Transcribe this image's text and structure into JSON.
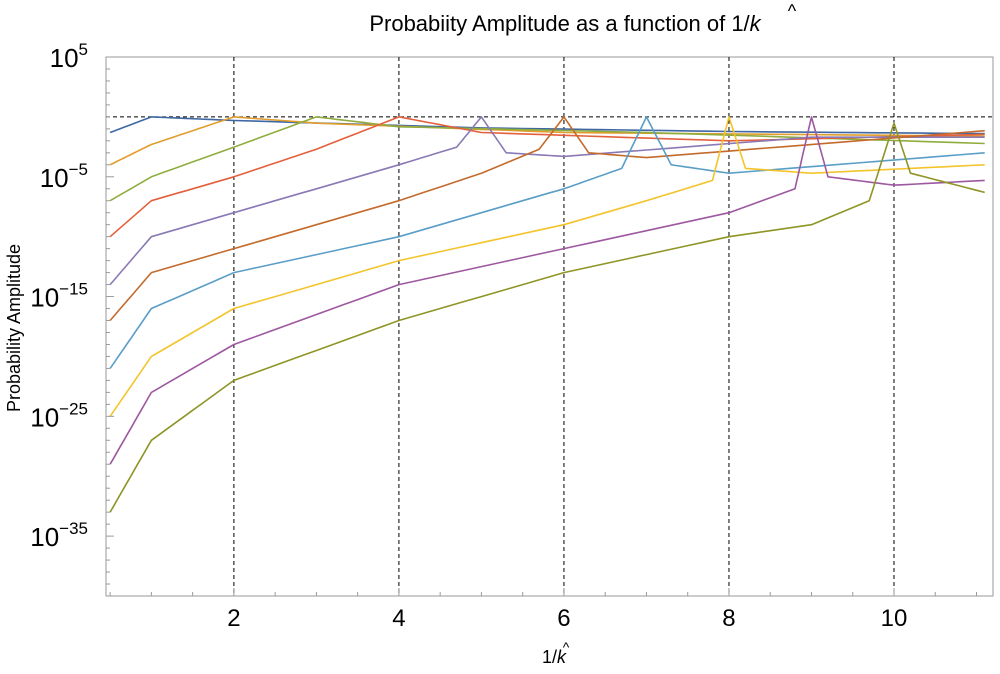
{
  "chart_data": {
    "type": "line",
    "title_parts": [
      "Probabiity Amplitude as a function of 1/",
      "k"
    ],
    "xlabel_parts": [
      "1/",
      "k"
    ],
    "ylabel": "Probability Amplitude",
    "x_scale": "linear",
    "y_scale": "log",
    "xlim": [
      0.45,
      11.2
    ],
    "ylim": [
      1e-40,
      100000.0
    ],
    "x_ticks": [
      2,
      4,
      6,
      8,
      10
    ],
    "x_tick_labels": [
      "2",
      "4",
      "6",
      "8",
      "10"
    ],
    "y_ticks": [
      {
        "base": "10",
        "exp": "5",
        "value": 100000.0
      },
      {
        "base": "10",
        "exp": "−5",
        "value": 1e-05
      },
      {
        "base": "10",
        "exp": "−15",
        "value": 1e-15
      },
      {
        "base": "10",
        "exp": "−25",
        "value": 1e-25
      },
      {
        "base": "10",
        "exp": "−35",
        "value": 1e-35
      }
    ],
    "reference_lines": {
      "horizontal_y": [
        1
      ],
      "vertical_x": [
        2,
        4,
        6,
        8,
        10
      ]
    },
    "grid": false,
    "series": [
      {
        "color": "#3e67a3",
        "points": [
          [
            0.5,
            0.05
          ],
          [
            1.0,
            1.0
          ],
          [
            2.0,
            0.5
          ],
          [
            5.0,
            0.12
          ],
          [
            8.0,
            0.06
          ],
          [
            11.1,
            0.04
          ]
        ]
      },
      {
        "color": "#e19d2d",
        "points": [
          [
            0.5,
            0.0001
          ],
          [
            1.0,
            0.005
          ],
          [
            2.0,
            1.0
          ],
          [
            3.0,
            0.3
          ],
          [
            6.0,
            0.05
          ],
          [
            11.1,
            0.025
          ]
        ]
      },
      {
        "color": "#8fad3e",
        "points": [
          [
            0.5,
            1e-07
          ],
          [
            1.0,
            1e-05
          ],
          [
            2.0,
            0.003
          ],
          [
            3.0,
            1.0
          ],
          [
            4.0,
            0.15
          ],
          [
            7.0,
            0.05
          ],
          [
            11.1,
            0.006
          ]
        ]
      },
      {
        "color": "#e4603c",
        "points": [
          [
            0.5,
            1e-10
          ],
          [
            1.0,
            1e-07
          ],
          [
            2.0,
            1e-05
          ],
          [
            3.0,
            0.002
          ],
          [
            4.0,
            1.0
          ],
          [
            5.0,
            0.05
          ],
          [
            8.0,
            0.01
          ],
          [
            11.1,
            0.035
          ]
        ]
      },
      {
        "color": "#8a79b5",
        "points": [
          [
            0.5,
            1e-14
          ],
          [
            1.0,
            1e-10
          ],
          [
            2.0,
            1e-08
          ],
          [
            3.0,
            1e-06
          ],
          [
            4.0,
            0.0001
          ],
          [
            4.7,
            0.003
          ],
          [
            5.0,
            1.0
          ],
          [
            5.3,
            0.001
          ],
          [
            6.0,
            0.0005
          ],
          [
            9.0,
            0.02
          ],
          [
            11.1,
            0.02
          ]
        ]
      },
      {
        "color": "#c46a2b",
        "points": [
          [
            0.5,
            1e-17
          ],
          [
            1.0,
            1e-13
          ],
          [
            3.0,
            1e-09
          ],
          [
            4.0,
            1e-07
          ],
          [
            5.0,
            2e-05
          ],
          [
            5.7,
            0.002
          ],
          [
            6.0,
            1.0
          ],
          [
            6.3,
            0.001
          ],
          [
            7.0,
            0.0004
          ],
          [
            11.1,
            0.07
          ]
        ]
      },
      {
        "color": "#5a9ec8",
        "points": [
          [
            0.5,
            1e-21
          ],
          [
            1.0,
            1e-16
          ],
          [
            2.0,
            1e-13
          ],
          [
            4.0,
            1e-10
          ],
          [
            5.0,
            1e-08
          ],
          [
            6.0,
            1e-06
          ],
          [
            6.7,
            5e-05
          ],
          [
            7.0,
            1.0
          ],
          [
            7.3,
            0.0001
          ],
          [
            8.0,
            2e-05
          ],
          [
            11.1,
            0.001
          ]
        ]
      },
      {
        "color": "#f3c42b",
        "points": [
          [
            0.5,
            1e-25
          ],
          [
            1.0,
            1e-20
          ],
          [
            2.0,
            1e-16
          ],
          [
            4.0,
            1e-12
          ],
          [
            6.0,
            1e-09
          ],
          [
            7.0,
            1e-07
          ],
          [
            7.8,
            5e-06
          ],
          [
            8.0,
            1.0
          ],
          [
            8.2,
            5e-05
          ],
          [
            9.0,
            2e-05
          ],
          [
            11.1,
            0.0001
          ]
        ]
      },
      {
        "color": "#9d58a0",
        "points": [
          [
            0.5,
            1e-29
          ],
          [
            1.0,
            1e-23
          ],
          [
            2.0,
            1e-19
          ],
          [
            4.0,
            1e-14
          ],
          [
            6.0,
            1e-11
          ],
          [
            8.0,
            1e-08
          ],
          [
            8.8,
            1e-06
          ],
          [
            9.0,
            1.0
          ],
          [
            9.2,
            1e-05
          ],
          [
            10.0,
            2e-06
          ],
          [
            11.1,
            5e-06
          ]
        ]
      },
      {
        "color": "#8e9525",
        "points": [
          [
            0.5,
            1e-33
          ],
          [
            1.0,
            1e-27
          ],
          [
            2.0,
            1e-22
          ],
          [
            4.0,
            1e-17
          ],
          [
            6.0,
            1e-13
          ],
          [
            8.0,
            1e-10
          ],
          [
            9.0,
            1e-09
          ],
          [
            9.7,
            1e-07
          ],
          [
            10.0,
            0.3
          ],
          [
            10.2,
            2e-05
          ],
          [
            11.1,
            5e-07
          ]
        ]
      }
    ]
  }
}
